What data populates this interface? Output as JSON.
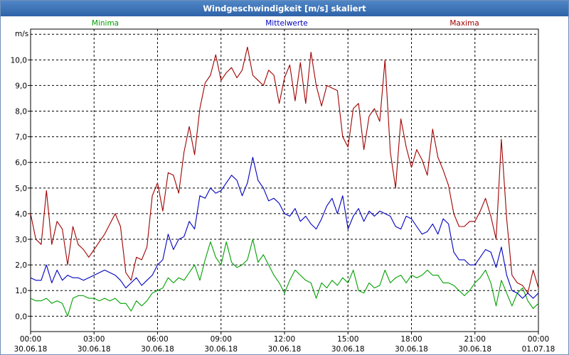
{
  "chart_data": {
    "type": "line",
    "title": "Windgeschwindigkeit [m/s] skaliert",
    "ylabel": "m/s",
    "xlabel": "",
    "ylim": [
      -0.6,
      11.2
    ],
    "xlim": [
      0,
      24
    ],
    "grid": true,
    "y_ticks": [
      "0,0",
      "1,0",
      "2,0",
      "3,0",
      "4,0",
      "5,0",
      "6,0",
      "7,0",
      "8,0",
      "9,0",
      "10,0"
    ],
    "x_ticks": [
      {
        "time": "00:00",
        "date": "30.06.18"
      },
      {
        "time": "03:00",
        "date": "30.06.18"
      },
      {
        "time": "06:00",
        "date": "30.06.18"
      },
      {
        "time": "09:00",
        "date": "30.06.18"
      },
      {
        "time": "12:00",
        "date": "30.06.18"
      },
      {
        "time": "15:00",
        "date": "30.06.18"
      },
      {
        "time": "18:00",
        "date": "30.06.18"
      },
      {
        "time": "21:00",
        "date": "30.06.18"
      },
      {
        "time": "00:00",
        "date": "01.07.18"
      }
    ],
    "x_hours": [
      0,
      0.25,
      0.5,
      0.75,
      1,
      1.25,
      1.5,
      1.75,
      2,
      2.25,
      2.5,
      2.75,
      3,
      3.25,
      3.5,
      3.75,
      4,
      4.25,
      4.5,
      4.75,
      5,
      5.25,
      5.5,
      5.75,
      6,
      6.25,
      6.5,
      6.75,
      7,
      7.25,
      7.5,
      7.75,
      8,
      8.25,
      8.5,
      8.75,
      9,
      9.25,
      9.5,
      9.75,
      10,
      10.25,
      10.5,
      10.75,
      11,
      11.25,
      11.5,
      11.75,
      12,
      12.25,
      12.5,
      12.75,
      13,
      13.25,
      13.5,
      13.75,
      14,
      14.25,
      14.5,
      14.75,
      15,
      15.25,
      15.5,
      15.75,
      16,
      16.25,
      16.5,
      16.75,
      17,
      17.25,
      17.5,
      17.75,
      18,
      18.25,
      18.5,
      18.75,
      19,
      19.25,
      19.5,
      19.75,
      20,
      20.25,
      20.5,
      20.75,
      21,
      21.25,
      21.5,
      21.75,
      22,
      22.25,
      22.5,
      22.75,
      23,
      23.25,
      23.5,
      23.75,
      24
    ],
    "series": [
      {
        "name": "Minima",
        "color": "#00a000",
        "legend_position": "top-left",
        "values": [
          0.7,
          0.6,
          0.6,
          0.7,
          0.5,
          0.6,
          0.5,
          0.0,
          0.7,
          0.8,
          0.8,
          0.7,
          0.7,
          0.6,
          0.7,
          0.6,
          0.7,
          0.5,
          0.5,
          0.2,
          0.6,
          0.4,
          0.6,
          0.9,
          1.0,
          1.1,
          1.5,
          1.3,
          1.5,
          1.4,
          1.7,
          2.0,
          1.4,
          2.2,
          2.9,
          2.3,
          2.0,
          2.9,
          2.1,
          1.9,
          2.0,
          2.2,
          3.0,
          2.1,
          2.4,
          2.0,
          1.6,
          1.3,
          0.9,
          1.4,
          1.8,
          1.6,
          1.4,
          1.3,
          0.7,
          1.3,
          1.1,
          1.4,
          1.2,
          1.5,
          1.3,
          1.8,
          1.0,
          0.9,
          1.3,
          1.1,
          1.2,
          1.8,
          1.3,
          1.5,
          1.6,
          1.3,
          1.6,
          1.5,
          1.6,
          1.8,
          1.6,
          1.6,
          1.3,
          1.3,
          1.2,
          1.0,
          0.8,
          1.0,
          1.3,
          1.5,
          1.8,
          1.3,
          0.4,
          1.4,
          0.9,
          0.4,
          0.9,
          1.1,
          0.6,
          0.3,
          0.5
        ]
      },
      {
        "name": "Mittelwerte",
        "color": "#0000c0",
        "legend_position": "top-center",
        "values": [
          1.5,
          1.4,
          1.4,
          2.0,
          1.3,
          1.8,
          1.4,
          1.6,
          1.5,
          1.5,
          1.4,
          1.5,
          1.6,
          1.7,
          1.8,
          1.7,
          1.6,
          1.4,
          1.1,
          1.3,
          1.5,
          1.2,
          1.4,
          1.6,
          2.0,
          2.2,
          3.2,
          2.6,
          3.0,
          3.1,
          3.7,
          3.4,
          4.7,
          4.6,
          5.0,
          4.8,
          4.9,
          5.2,
          5.5,
          5.3,
          4.7,
          5.2,
          6.2,
          5.3,
          5.0,
          4.5,
          4.6,
          4.4,
          4.0,
          3.9,
          4.2,
          3.7,
          3.9,
          3.6,
          3.4,
          3.8,
          4.3,
          4.6,
          4.0,
          4.7,
          3.4,
          3.9,
          4.2,
          3.7,
          4.1,
          3.9,
          4.1,
          4.0,
          3.9,
          3.5,
          3.4,
          3.9,
          3.8,
          3.5,
          3.2,
          3.3,
          3.6,
          3.2,
          3.8,
          3.6,
          2.5,
          2.2,
          2.2,
          2.0,
          2.0,
          2.3,
          2.6,
          2.5,
          1.9,
          2.7,
          1.6,
          1.0,
          0.9,
          0.7,
          0.9,
          0.7,
          0.9
        ]
      },
      {
        "name": "Maxima",
        "color": "#a00000",
        "legend_position": "top-right",
        "values": [
          4.0,
          3.0,
          2.8,
          4.9,
          2.8,
          3.7,
          3.4,
          2.0,
          3.5,
          2.8,
          2.6,
          2.3,
          2.6,
          2.9,
          3.2,
          3.6,
          4.0,
          3.5,
          1.7,
          1.4,
          2.3,
          2.2,
          2.7,
          4.7,
          5.2,
          4.1,
          5.6,
          5.5,
          4.8,
          6.4,
          7.4,
          6.3,
          8.1,
          9.1,
          9.4,
          10.2,
          9.2,
          9.5,
          9.7,
          9.3,
          9.6,
          10.5,
          9.4,
          9.2,
          9.0,
          9.6,
          9.4,
          8.3,
          9.3,
          9.8,
          8.4,
          9.9,
          8.3,
          10.3,
          9.0,
          8.2,
          9.0,
          8.9,
          8.8,
          7.0,
          6.6,
          8.1,
          8.3,
          6.5,
          7.8,
          8.1,
          7.6,
          10.0,
          6.4,
          5.0,
          7.7,
          6.6,
          5.8,
          6.5,
          6.1,
          5.5,
          7.3,
          6.2,
          5.7,
          5.1,
          4.0,
          3.5,
          3.5,
          3.7,
          3.7,
          4.1,
          4.6,
          3.9,
          3.0,
          6.9,
          3.8,
          1.6,
          1.3,
          1.2,
          0.9,
          1.8,
          1.1
        ]
      }
    ]
  }
}
